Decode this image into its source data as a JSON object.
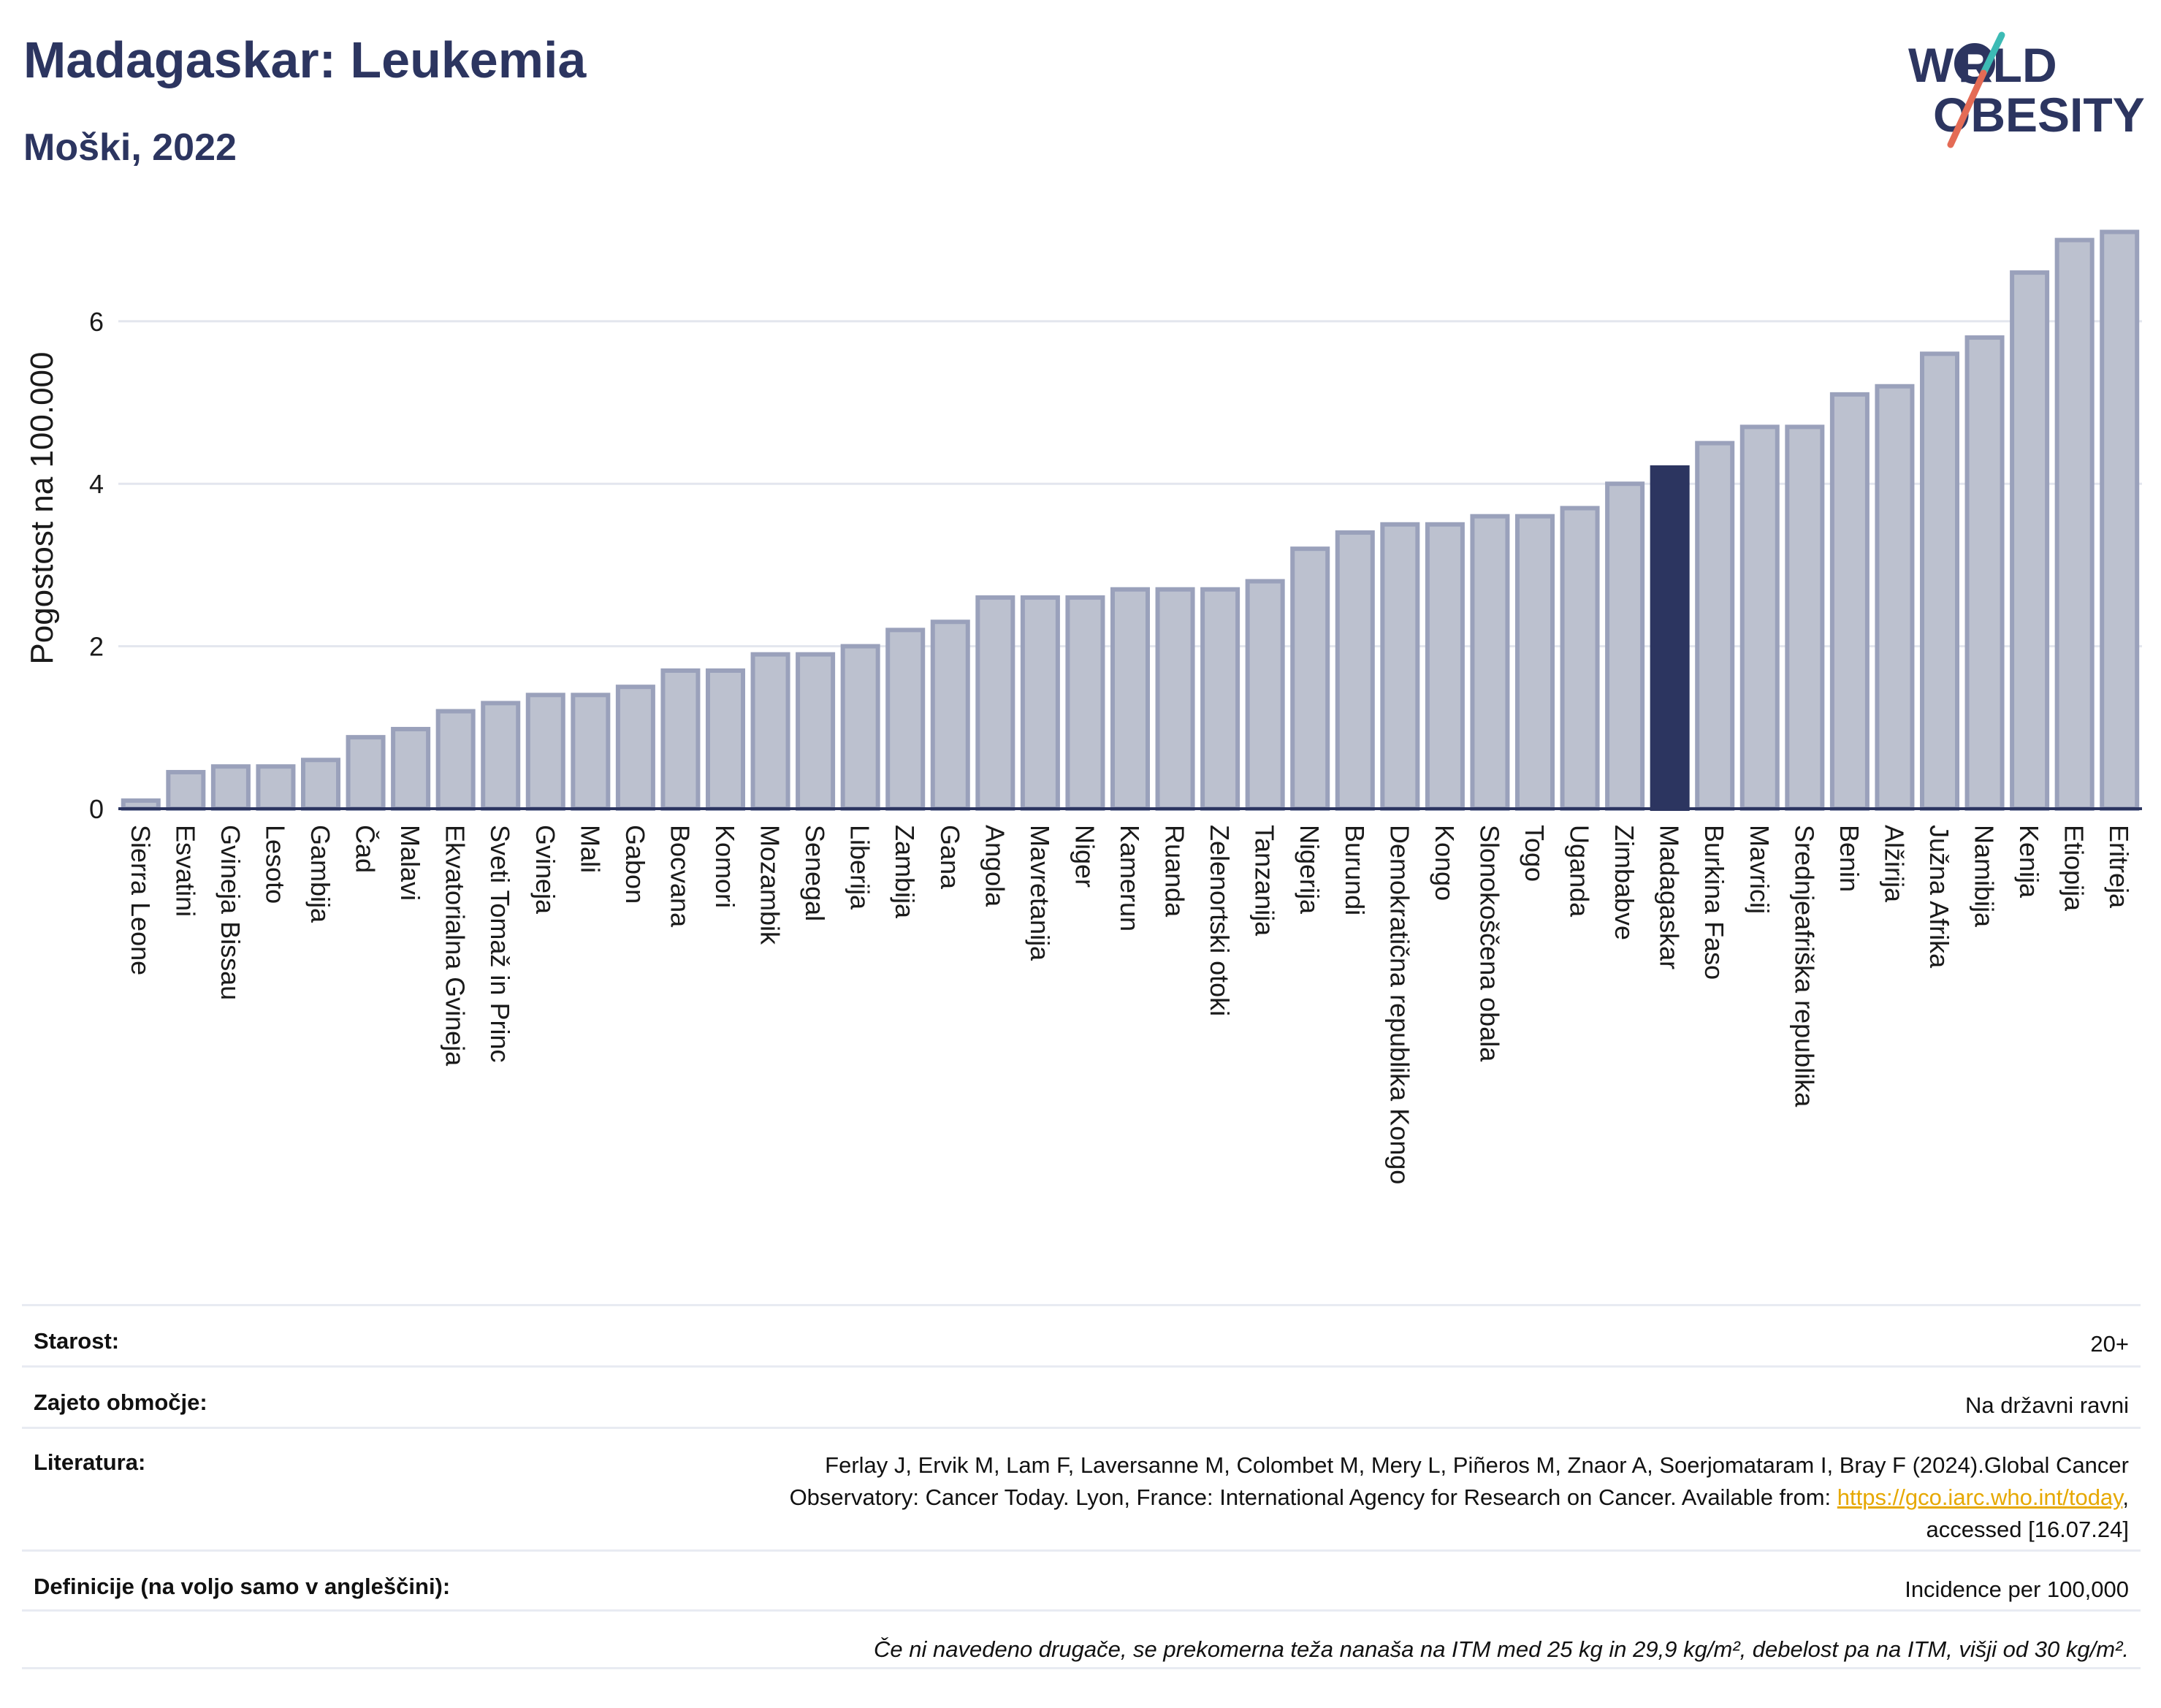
{
  "header": {
    "title": "Madagaskar: Leukemia",
    "subtitle": "Moški, 2022"
  },
  "logo": {
    "line1": "WORLD",
    "line2": "OBESITY"
  },
  "colors": {
    "bar": "#bcc1cf",
    "bar_stroke": "#9aa1bb",
    "highlight": "#2c3560",
    "axis": "#2c3560",
    "grid": "#e3e6ee"
  },
  "chart_data": {
    "type": "bar",
    "ylabel": "Pogostost na 100.000",
    "ylim": [
      0,
      7.5
    ],
    "yticks": [
      0,
      2,
      4,
      6
    ],
    "grid": true,
    "highlight": "Madagaskar",
    "categories": [
      "Sierra Leone",
      "Esvatini",
      "Gvineja Bissau",
      "Lesoto",
      "Gambija",
      "Čad",
      "Malavi",
      "Ekvatorialna Gvineja",
      "Sveti Tomaž in Princ",
      "Gvineja",
      "Mali",
      "Gabon",
      "Bocvana",
      "Komori",
      "Mozambik",
      "Senegal",
      "Liberija",
      "Zambija",
      "Gana",
      "Angola",
      "Mavretanija",
      "Niger",
      "Kamerun",
      "Ruanda",
      "Zelenortski otoki",
      "Tanzanija",
      "Nigerija",
      "Burundi",
      "Demokratična republika Kongo",
      "Kongo",
      "Slonokoščena obala",
      "Togo",
      "Uganda",
      "Zimbabve",
      "Madagaskar",
      "Burkina Faso",
      "Mavricij",
      "Srednjeafriška republika",
      "Benin",
      "Alžirija",
      "Južna Afrika",
      "Namibija",
      "Kenija",
      "Etiopija",
      "Eritreja"
    ],
    "values": [
      0.1,
      0.45,
      0.52,
      0.52,
      0.6,
      0.88,
      0.98,
      1.2,
      1.3,
      1.4,
      1.4,
      1.5,
      1.7,
      1.7,
      1.9,
      1.9,
      2.0,
      2.2,
      2.3,
      2.6,
      2.6,
      2.6,
      2.7,
      2.7,
      2.7,
      2.8,
      3.2,
      3.4,
      3.5,
      3.5,
      3.6,
      3.6,
      3.7,
      4.0,
      4.2,
      4.5,
      4.7,
      4.7,
      5.1,
      5.2,
      5.6,
      5.8,
      6.6,
      7.0,
      7.1
    ]
  },
  "info": {
    "age_label": "Starost:",
    "age_value": "20+",
    "coverage_label": "Zajeto območje:",
    "coverage_value": "Na državni ravni",
    "lit_label": "Literatura:",
    "lit_text1": "Ferlay J, Ervik M, Lam F, Laversanne M, Colombet M, Mery L, Piñeros M, Znaor A, Soerjomataram I, Bray F (2024).Global Cancer",
    "lit_text2": "Observatory: Cancer Today. Lyon, France: International Agency for Research on Cancer. Available from: ",
    "lit_link": "https://gco.iarc.who.int/today",
    "lit_text3": ",",
    "lit_text4": "accessed [16.07.24]",
    "def_label": "Definicije (na voljo samo v angleščini):",
    "def_value": "Incidence per 100,000",
    "note": "Če ni navedeno drugače, se prekomerna teža nanaša na ITM med 25 kg in 29,9 kg/m², debelost pa na ITM, višji od 30 kg/m²."
  }
}
